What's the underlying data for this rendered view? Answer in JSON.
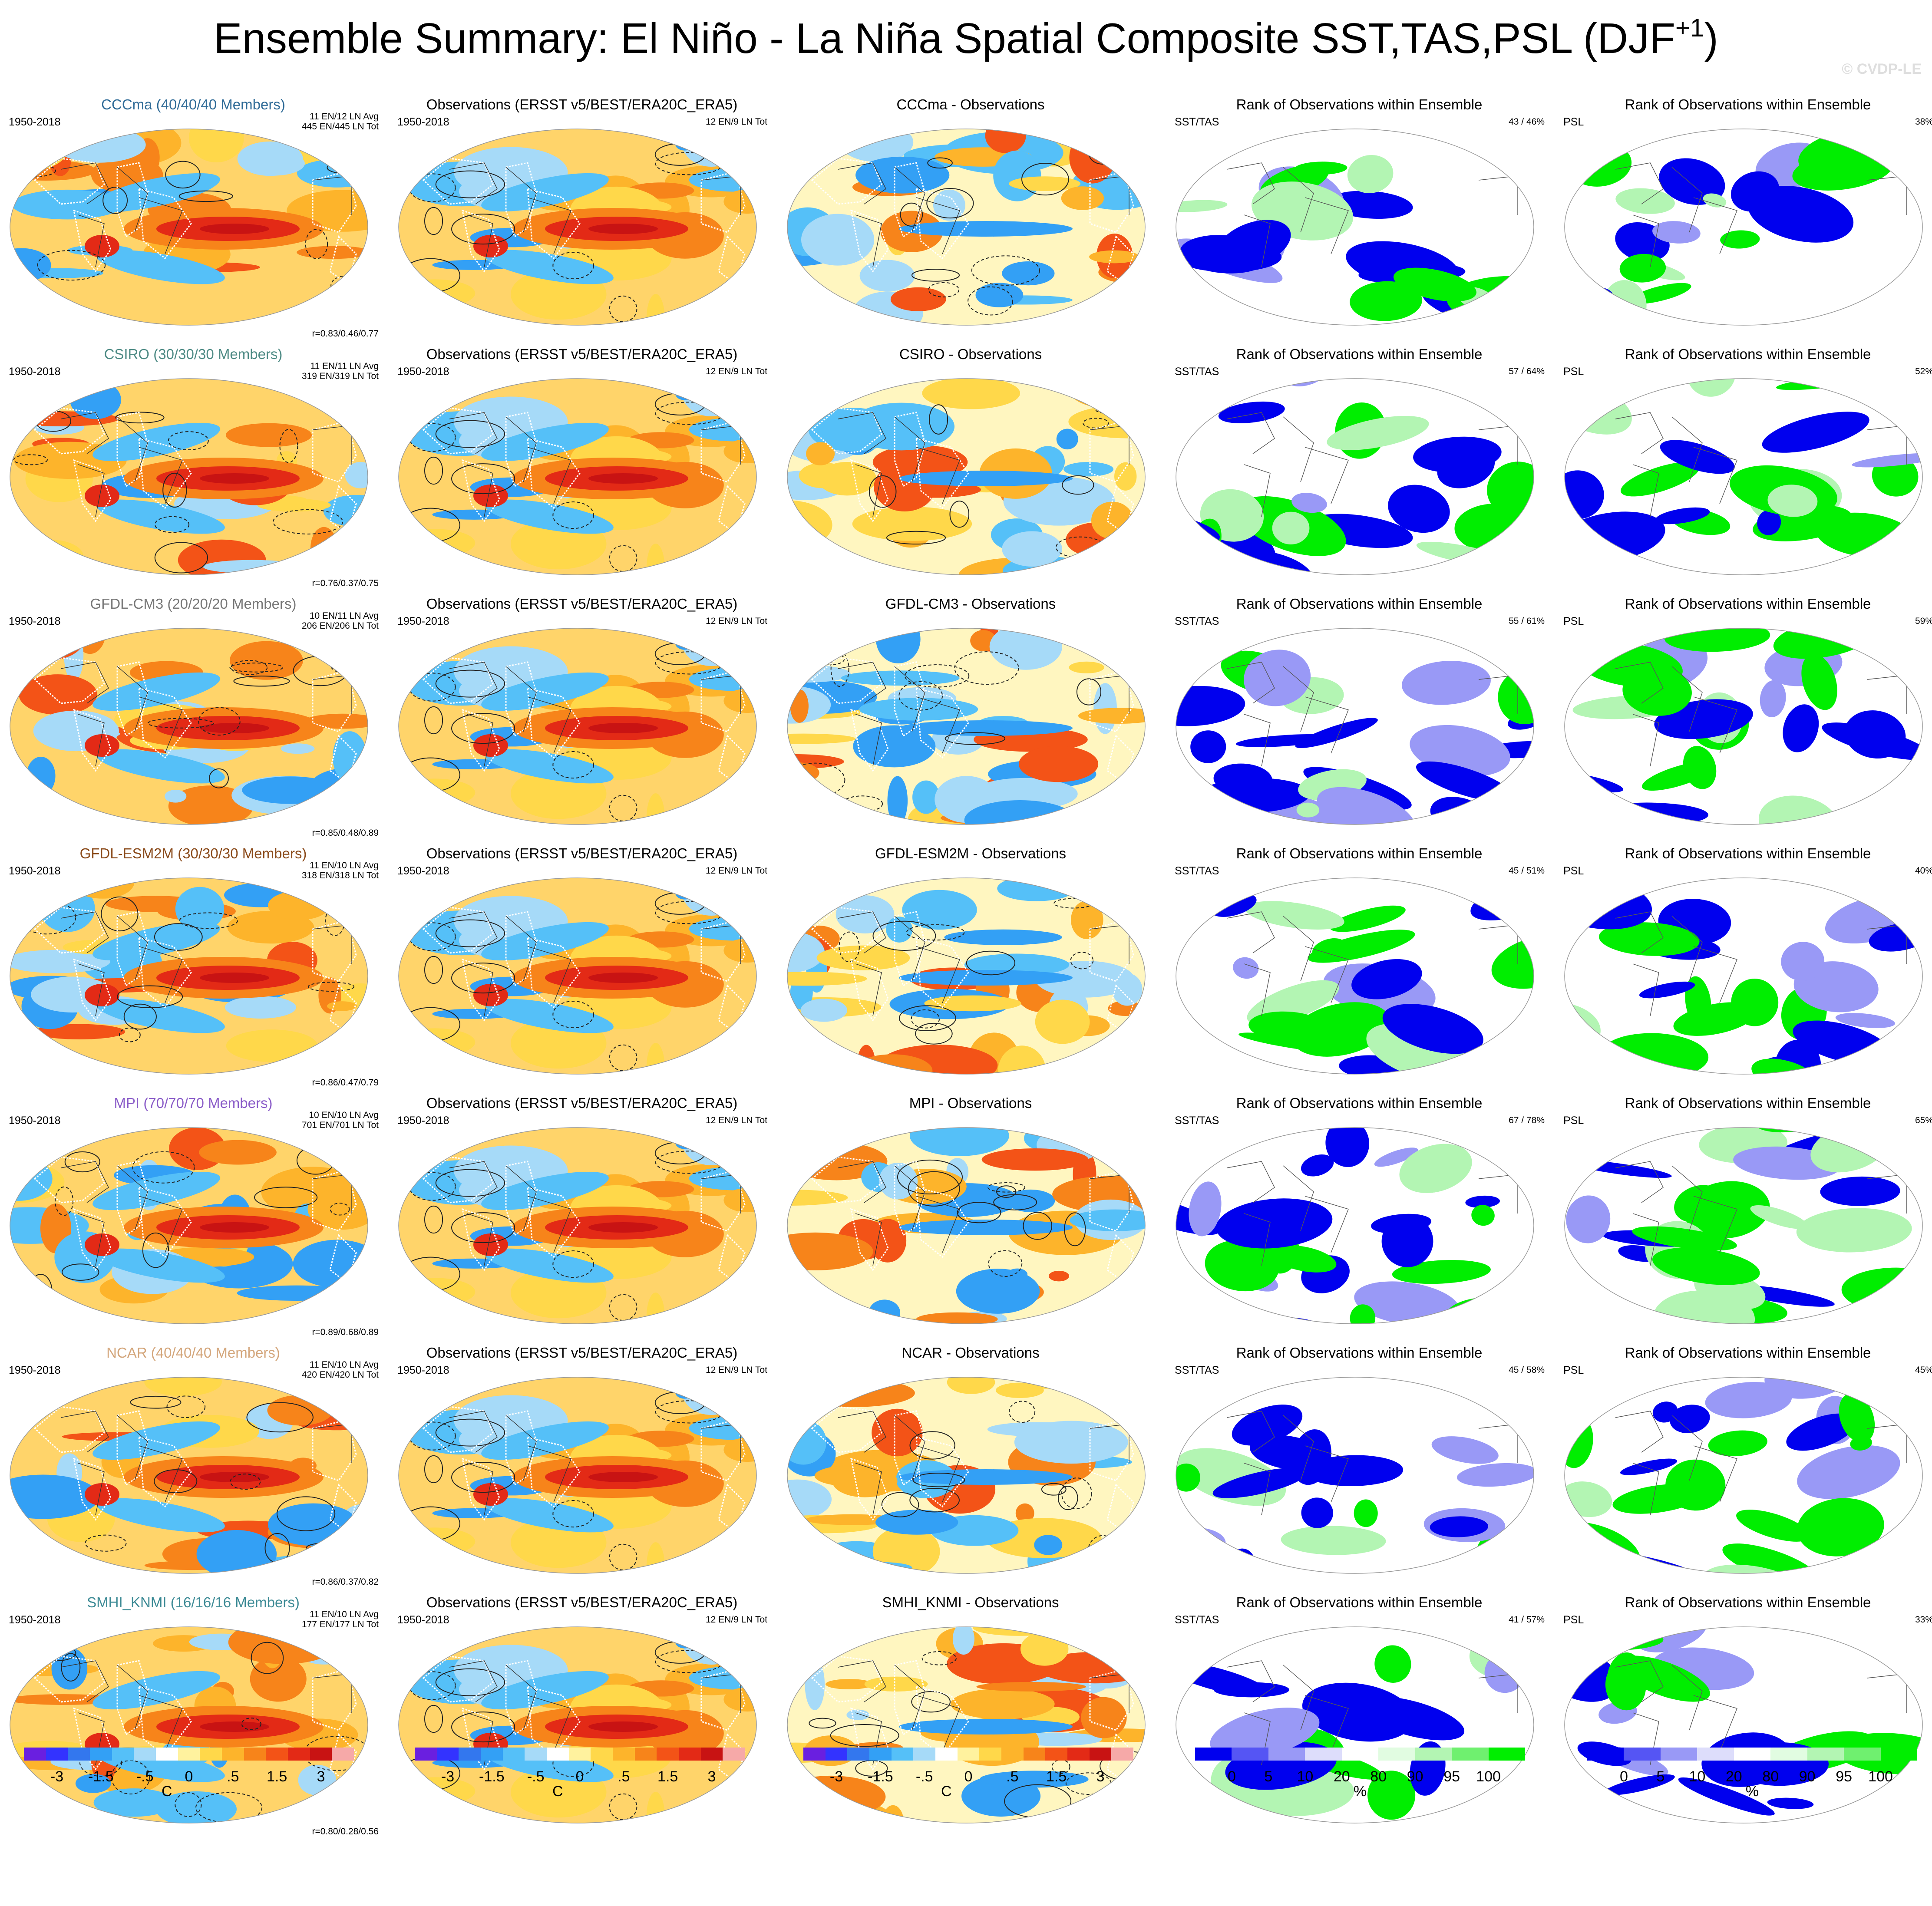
{
  "title": {
    "text": "Ensemble Summary: El Niño - La Niña Spatial Composite SST,TAS,PSL (DJF",
    "superscript": "+1",
    "closing": ")"
  },
  "watermark": "© CVDP-LE",
  "colors": {
    "diverging": [
      "#6a1fe0",
      "#3333ff",
      "#3377ee",
      "#33a0f5",
      "#55c0f8",
      "#a6daf8",
      "#ffffff",
      "#fff29e",
      "#ffd84a",
      "#fdb42b",
      "#f7841a",
      "#f35317",
      "#e32a16",
      "#c81313",
      "#f6a9a8"
    ],
    "rank": [
      "#0000ee",
      "#5555f4",
      "#9999f6",
      "#ddddfb",
      "#ffffff",
      "#e1fce1",
      "#b3f5b3",
      "#6ff06f",
      "#00ee00"
    ],
    "ocean_neutral": "#fffbe0"
  },
  "row_ensembles": [
    {
      "name": "CCCma (40/40/40 Members)",
      "color": "#2f6b97",
      "model_period": "1950-2018",
      "counts": [
        "11 EN/12 LN Avg",
        "445 EN/445 LN Tot"
      ],
      "corr": "r=0.83/0.46/0.77"
    },
    {
      "name": "CSIRO (30/30/30 Members)",
      "color": "#4d8a84",
      "model_period": "1950-2018",
      "counts": [
        "11 EN/11 LN Avg",
        "319 EN/319 LN Tot"
      ],
      "corr": "r=0.76/0.37/0.75"
    },
    {
      "name": "GFDL-CM3 (20/20/20 Members)",
      "color": "#777777",
      "model_period": "1950-2018",
      "counts": [
        "10 EN/11 LN Avg",
        "206 EN/206 LN Tot"
      ],
      "corr": "r=0.85/0.48/0.89"
    },
    {
      "name": "GFDL-ESM2M (30/30/30 Members)",
      "color": "#8a4a1a",
      "model_period": "1950-2018",
      "counts": [
        "11 EN/10 LN Avg",
        "318 EN/318 LN Tot"
      ],
      "corr": "r=0.86/0.47/0.79"
    },
    {
      "name": "MPI (70/70/70 Members)",
      "color": "#8a5cc8",
      "model_period": "1950-2018",
      "counts": [
        "10 EN/10 LN Avg",
        "701 EN/701 LN Tot"
      ],
      "corr": "r=0.89/0.68/0.89"
    },
    {
      "name": "NCAR (40/40/40 Members)",
      "color": "#d3a57a",
      "model_period": "1950-2018",
      "counts": [
        "11 EN/10 LN Avg",
        "420 EN/420 LN Tot"
      ],
      "corr": "r=0.86/0.37/0.82"
    },
    {
      "name": "SMHI_KNMI (16/16/16 Members)",
      "color": "#3c8a95",
      "model_period": "1950-2018",
      "counts": [
        "11 EN/10 LN Avg",
        "177 EN/177 LN Tot"
      ],
      "corr": "r=0.80/0.28/0.56"
    }
  ],
  "observations": {
    "title": "Observations (ERSST v5/BEST/ERA20C_ERA5)",
    "period": "1950-2018",
    "counts": "12 EN/9 LN Tot"
  },
  "differences": [
    "CCCma - Observations",
    "CSIRO - Observations",
    "GFDL-CM3 - Observations",
    "GFDL-ESM2M - Observations",
    "MPI - Observations",
    "NCAR - Observations",
    "SMHI_KNMI - Observations"
  ],
  "rank_sst": {
    "title": "Rank of Observations within Ensemble",
    "label": "SST/TAS",
    "values": [
      "43 /  46%",
      "57 /  64%",
      "55 /  61%",
      "45 /  51%",
      "67 /  78%",
      "45 /  58%",
      "41 /  57%"
    ]
  },
  "rank_psl": {
    "title": "Rank of Observations within Ensemble",
    "label": "PSL",
    "values": [
      "38%",
      "52%",
      "59%",
      "40%",
      "65%",
      "45%",
      "33%"
    ]
  },
  "colorbars": {
    "diverging_labels": [
      "-3",
      "-1.5",
      "-.5",
      "0",
      ".5",
      "1.5",
      "3"
    ],
    "diverging_unit": "C",
    "rank_labels": [
      "0",
      "5",
      "10",
      "20",
      "80",
      "90",
      "95",
      "100"
    ],
    "rank_unit": "%"
  }
}
